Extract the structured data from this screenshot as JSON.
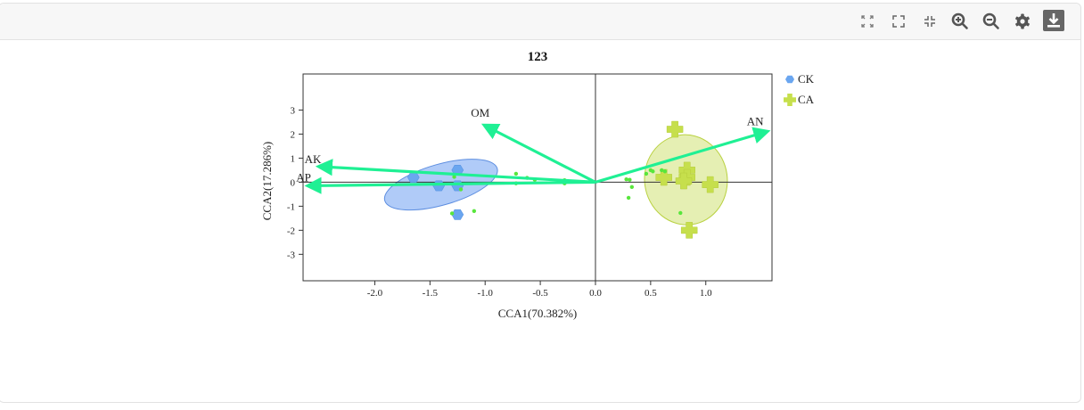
{
  "toolbar": {
    "icons": [
      "fit-screen-icon",
      "fullscreen-icon",
      "exit-fullscreen-icon",
      "zoom-in-icon",
      "zoom-out-icon",
      "settings-icon",
      "download-icon"
    ]
  },
  "chart_data": {
    "type": "scatter",
    "title": "123",
    "xlabel": "CCA1(70.382%)",
    "ylabel": "CCA2(17.286%)",
    "xlim": [
      -2.65,
      1.6
    ],
    "ylim": [
      -4.1,
      4.5
    ],
    "xticks": [
      {
        "v": -2.0,
        "t": "-2.0"
      },
      {
        "v": -1.5,
        "t": "-1.5"
      },
      {
        "v": -1.0,
        "t": "-1.0"
      },
      {
        "v": -0.5,
        "t": "-0.5"
      },
      {
        "v": 0.0,
        "t": "0.0"
      },
      {
        "v": 0.5,
        "t": "0.5"
      },
      {
        "v": 1.0,
        "t": "1.0"
      }
    ],
    "yticks": [
      {
        "v": 3,
        "t": "3"
      },
      {
        "v": 2,
        "t": "2"
      },
      {
        "v": 1,
        "t": "1"
      },
      {
        "v": 0,
        "t": "0"
      },
      {
        "v": -1,
        "t": "-1"
      },
      {
        "v": -2,
        "t": "-2"
      },
      {
        "v": -3,
        "t": "-3"
      }
    ],
    "legend_position": "top-right",
    "series": [
      {
        "name": "CK",
        "color": "#6aa6f0",
        "marker": "hexagon",
        "ellipse": {
          "cx": -1.4,
          "cy": -0.1,
          "rx": 1.06,
          "ry": 1.7,
          "rotate_deg": -16,
          "fill": "#6fa0f2",
          "stroke": "#5d8ee0"
        },
        "points": [
          [
            -1.65,
            0.2
          ],
          [
            -1.42,
            -0.15
          ],
          [
            -1.25,
            0.5
          ],
          [
            -1.25,
            -0.15
          ],
          [
            -1.25,
            -1.35
          ]
        ]
      },
      {
        "name": "CA",
        "color": "#c6df4c",
        "marker": "plus",
        "ellipse": {
          "cx": 0.82,
          "cy": 0.1,
          "rx": 0.75,
          "ry": 3.75,
          "rotate_deg": -8,
          "fill": "#cfe275",
          "stroke": "#b9d141"
        },
        "points": [
          [
            0.72,
            2.2
          ],
          [
            0.62,
            0.2
          ],
          [
            0.83,
            0.5
          ],
          [
            0.83,
            0.2
          ],
          [
            0.8,
            0.05
          ],
          [
            1.04,
            -0.1
          ],
          [
            0.85,
            -2.0
          ]
        ]
      }
    ],
    "samples": {
      "color": "#58e63c",
      "points": [
        [
          -1.28,
          0.22
        ],
        [
          -1.22,
          -0.3
        ],
        [
          -1.3,
          -1.3
        ],
        [
          -1.1,
          -1.2
        ],
        [
          -0.72,
          0.35
        ],
        [
          -0.72,
          -0.05
        ],
        [
          -0.62,
          0.18
        ],
        [
          -0.55,
          0.1
        ],
        [
          -0.28,
          0.08
        ],
        [
          -0.28,
          -0.05
        ],
        [
          0.28,
          0.12
        ],
        [
          0.31,
          0.1
        ],
        [
          0.33,
          -0.2
        ],
        [
          0.3,
          -0.65
        ],
        [
          0.46,
          0.35
        ],
        [
          0.5,
          0.5
        ],
        [
          0.52,
          0.45
        ],
        [
          0.6,
          0.5
        ],
        [
          0.63,
          0.45
        ],
        [
          0.77,
          -1.28
        ]
      ]
    },
    "vectors": {
      "color": "#1ff094",
      "items": [
        {
          "label": "AN",
          "x": 1.55,
          "y": 2.1
        },
        {
          "label": "OM",
          "x": -1.0,
          "y": 2.35
        },
        {
          "label": "AK",
          "x": -2.5,
          "y": 0.65
        },
        {
          "label": "AP",
          "x": -2.6,
          "y": -0.15
        }
      ]
    }
  }
}
